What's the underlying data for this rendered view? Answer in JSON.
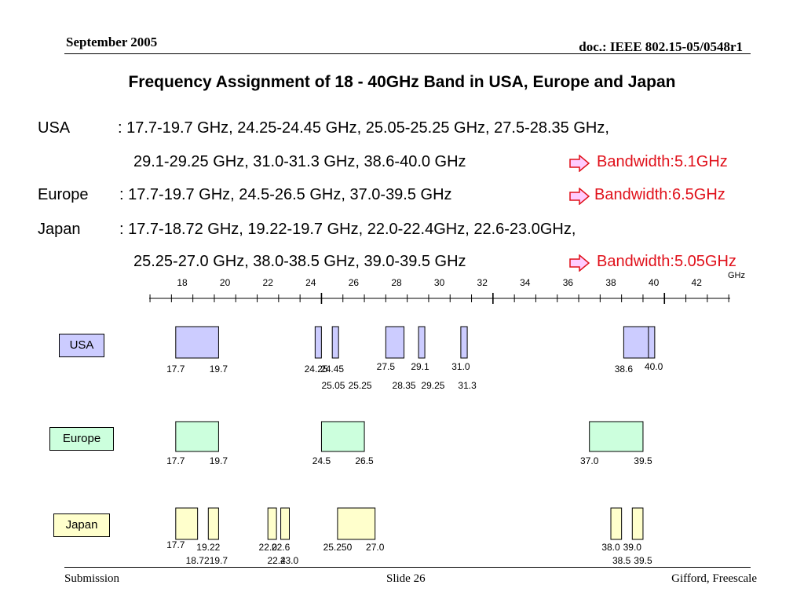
{
  "header": {
    "date": "September 2005",
    "doc": "doc.: IEEE 802.15-05/0548r1"
  },
  "title": "Frequency Assignment of 18 -  40GHz Band in USA, Europe and Japan",
  "lines": {
    "usa_label": "USA",
    "usa_line1": ": 17.7-19.7 GHz, 24.25-24.45 GHz, 25.05-25.25 GHz, 27.5-28.35 GHz,",
    "usa_line2": "29.1-29.25 GHz, 31.0-31.3 GHz, 38.6-40.0 GHz",
    "usa_bw": "Bandwidth:5.1GHz",
    "europe_label": "Europe",
    "europe_line1": ": 17.7-19.7 GHz, 24.5-26.5 GHz, 37.0-39.5 GHz",
    "europe_bw": "Bandwidth:6.5GHz",
    "japan_label": "Japan",
    "japan_line1": ": 17.7-18.72 GHz, 19.22-19.7 GHz, 22.0-22.4GHz, 22.6-23.0GHz,",
    "japan_line2": "25.25-27.0 GHz, 38.0-38.5 GHz, 39.0-39.5 GHz",
    "japan_bw": "Bandwidth:5.05GHz"
  },
  "axis": {
    "unit": "GHz",
    "ticks": [
      "18",
      "20",
      "22",
      "24",
      "26",
      "28",
      "30",
      "32",
      "34",
      "36",
      "38",
      "40",
      "42"
    ]
  },
  "regions": [
    {
      "id": "usa",
      "label": "USA",
      "color": "#ccccff",
      "bands": [
        [
          17.7,
          19.7
        ],
        [
          24.25,
          24.45
        ],
        [
          25.05,
          25.25
        ],
        [
          27.5,
          28.35
        ],
        [
          29.1,
          29.25
        ],
        [
          31.0,
          31.3
        ],
        [
          38.6,
          39.8
        ],
        [
          39.8,
          40.0
        ]
      ],
      "labels": [
        {
          "f": 17.7,
          "t": "17.7",
          "row": 0
        },
        {
          "f": 19.7,
          "t": "19.7",
          "row": 0
        },
        {
          "f": 24.25,
          "t": "24.25",
          "row": 0
        },
        {
          "f": 25.0,
          "t": "24.45",
          "row": 0
        },
        {
          "f": 25.05,
          "t": "25.05",
          "row": 1
        },
        {
          "f": 26.3,
          "t": "25.25",
          "row": 1
        },
        {
          "f": 27.5,
          "t": "27.5",
          "row": -1
        },
        {
          "f": 29.1,
          "t": "29.1",
          "row": -1
        },
        {
          "f": 28.35,
          "t": "28.35",
          "row": 1
        },
        {
          "f": 29.7,
          "t": "29.25",
          "row": 1
        },
        {
          "f": 31.0,
          "t": "31.0",
          "row": -1
        },
        {
          "f": 31.3,
          "t": "31.3",
          "row": 1
        },
        {
          "f": 38.6,
          "t": "38.6",
          "row": 0
        },
        {
          "f": 40.0,
          "t": "40.0",
          "row": -1
        }
      ]
    },
    {
      "id": "europe",
      "label": "Europe",
      "color": "#ccffdd",
      "bands": [
        [
          17.7,
          19.7
        ],
        [
          24.5,
          26.5
        ],
        [
          37.0,
          39.5
        ]
      ],
      "labels": [
        {
          "f": 17.7,
          "t": "17.7",
          "row": 0
        },
        {
          "f": 19.7,
          "t": "19.7",
          "row": 0
        },
        {
          "f": 24.5,
          "t": "24.5",
          "row": 0
        },
        {
          "f": 26.5,
          "t": "26.5",
          "row": 0
        },
        {
          "f": 37.0,
          "t": "37.0",
          "row": 0
        },
        {
          "f": 39.5,
          "t": "39.5",
          "row": 0
        }
      ]
    },
    {
      "id": "japan",
      "label": "Japan",
      "color": "#ffffcc",
      "bands": [
        [
          17.7,
          18.72
        ],
        [
          19.22,
          19.7
        ],
        [
          22.0,
          22.4
        ],
        [
          22.6,
          23.0
        ],
        [
          25.25,
          27.0
        ],
        [
          38.0,
          38.5
        ],
        [
          39.0,
          39.5
        ]
      ],
      "labels": [
        {
          "f": 17.7,
          "t": "17.7",
          "row": -1
        },
        {
          "f": 19.22,
          "t": "19.22",
          "row": 0
        },
        {
          "f": 18.72,
          "t": "18.72",
          "row": 1
        },
        {
          "f": 19.7,
          "t": "19.7",
          "row": 1
        },
        {
          "f": 22.0,
          "t": "22.0",
          "row": 0
        },
        {
          "f": 22.6,
          "t": "22.6",
          "row": 0
        },
        {
          "f": 22.4,
          "t": "22.4",
          "row": 1
        },
        {
          "f": 23.0,
          "t": "23.0",
          "row": 1
        },
        {
          "f": 25.25,
          "t": "25.250",
          "row": 0
        },
        {
          "f": 27.0,
          "t": "27.0",
          "row": 0
        },
        {
          "f": 38.0,
          "t": "38.0",
          "row": 0
        },
        {
          "f": 39.0,
          "t": "39.0",
          "row": 0
        },
        {
          "f": 38.5,
          "t": "38.5",
          "row": 1
        },
        {
          "f": 39.5,
          "t": "39.5",
          "row": 1
        }
      ]
    }
  ],
  "footer": {
    "left": "Submission",
    "center": "Slide 26",
    "right": "Gifford, Freescale"
  },
  "colors": {
    "bandwidth": "#e0101a",
    "arrow_fill": "#ffccff",
    "arrow_stroke": "#e0101a"
  }
}
